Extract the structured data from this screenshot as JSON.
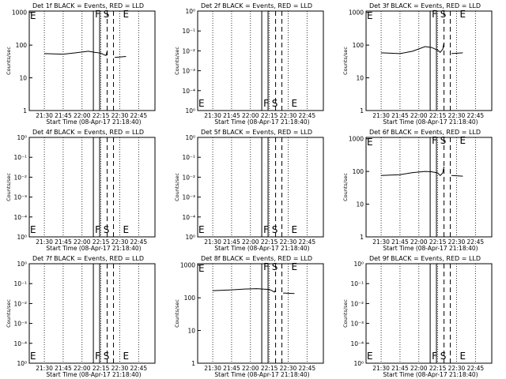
{
  "colors": {
    "events": "#000000",
    "lld": "#ff0000",
    "background": "#ffffff"
  },
  "chart_data": [
    {
      "type": "line",
      "title": "Det 1f BLACK = Events, RED = LLD",
      "xlabel": "Start Time (08-Apr-17 21:18:40)",
      "ylabel": "Counts/sec",
      "x_ticks": [
        "21:30",
        "21:45",
        "22:00",
        "22:15",
        "22:30",
        "22:45"
      ],
      "y_scale": "log",
      "y_ticks": [
        "1",
        "10",
        "100",
        "1000"
      ],
      "ylim": [
        1,
        1100
      ],
      "markers": [
        "F",
        "S",
        "E"
      ],
      "corner_label": "E",
      "series": [
        {
          "values": [
            [
              "21:30",
              55
            ],
            [
              "21:45",
              53
            ],
            [
              "21:55",
              58
            ],
            [
              "22:05",
              65
            ],
            [
              "22:10",
              60
            ],
            [
              "22:15",
              57
            ],
            [
              "22:17",
              52
            ],
            [
              "22:19",
              48
            ],
            [
              "22:20",
              65
            ],
            [
              "22:25",
              null
            ],
            [
              "22:26",
              42
            ],
            [
              "22:35",
              45
            ],
            [
              "22:36",
              null
            ]
          ]
        }
      ]
    },
    {
      "type": "line",
      "title": "Det 2f BLACK = Events, RED = LLD",
      "xlabel": "Start Time (08-Apr-17 21:18:40)",
      "ylabel": "Counts/sec",
      "x_ticks": [
        "21:30",
        "21:45",
        "22:00",
        "22:15",
        "22:30",
        "22:45"
      ],
      "y_scale": "log",
      "y_ticks": [
        "10⁰",
        "10⁻⁴",
        "10⁻³",
        "10⁻²",
        "10⁻¹",
        "10⁰"
      ],
      "y_tick_note": "tick labels as printed",
      "markers": [
        "F",
        "S",
        "E"
      ],
      "corner_label": "E",
      "series": []
    },
    {
      "type": "line",
      "title": "Det 3f BLACK = Events, RED = LLD",
      "xlabel": "Start Time (08-Apr-17 21:18:40)",
      "ylabel": "Counts/sec",
      "x_ticks": [
        "21:30",
        "21:45",
        "22:00",
        "22:15",
        "22:30",
        "22:45"
      ],
      "y_scale": "log",
      "y_ticks": [
        "1",
        "10",
        "100",
        "1000"
      ],
      "ylim": [
        1,
        1100
      ],
      "markers": [
        "F",
        "S",
        "E"
      ],
      "corner_label": "E",
      "series": [
        {
          "values": [
            [
              "21:30",
              58
            ],
            [
              "21:45",
              55
            ],
            [
              "21:55",
              65
            ],
            [
              "22:05",
              90
            ],
            [
              "22:10",
              85
            ],
            [
              "22:15",
              70
            ],
            [
              "22:17",
              60
            ],
            [
              "22:19",
              75
            ],
            [
              "22:20",
              120
            ],
            [
              "22:25",
              null
            ],
            [
              "22:26",
              55
            ],
            [
              "22:35",
              58
            ],
            [
              "22:36",
              null
            ]
          ]
        }
      ]
    },
    {
      "type": "line",
      "title": "Det 4f BLACK = Events, RED = LLD",
      "xlabel": "Start Time (08-Apr-17 21:18:40)",
      "ylabel": "Counts/sec",
      "x_ticks": [
        "21:30",
        "21:45",
        "22:00",
        "22:15",
        "22:30",
        "22:45"
      ],
      "y_scale": "log",
      "y_ticks": [
        "10⁰",
        "10⁻⁴",
        "10⁻³",
        "10⁻²",
        "10⁻¹",
        "10⁰"
      ],
      "markers": [
        "F",
        "S",
        "E"
      ],
      "corner_label": "E",
      "series": []
    },
    {
      "type": "line",
      "title": "Det 5f BLACK = Events, RED = LLD",
      "xlabel": "Start Time (08-Apr-17 21:18:40)",
      "ylabel": "Counts/sec",
      "x_ticks": [
        "21:30",
        "21:45",
        "22:00",
        "22:15",
        "22:30",
        "22:45"
      ],
      "y_scale": "log",
      "y_ticks": [
        "10⁰",
        "10⁻⁴",
        "10⁻³",
        "10⁻²",
        "10⁻¹",
        "10⁰"
      ],
      "markers": [
        "F",
        "S",
        "E"
      ],
      "corner_label": "E",
      "series": []
    },
    {
      "type": "line",
      "title": "Det 6f BLACK = Events, RED = LLD",
      "xlabel": "Start Time (08-Apr-17 21:18:40)",
      "ylabel": "Counts/sec",
      "x_ticks": [
        "21:30",
        "21:45",
        "22:00",
        "22:15",
        "22:30",
        "22:45"
      ],
      "y_scale": "log",
      "y_ticks": [
        "1",
        "10",
        "100",
        "1000"
      ],
      "ylim": [
        1,
        1100
      ],
      "markers": [
        "F",
        "S",
        "E"
      ],
      "corner_label": "E",
      "series": [
        {
          "values": [
            [
              "21:30",
              75
            ],
            [
              "21:45",
              80
            ],
            [
              "21:55",
              92
            ],
            [
              "22:05",
              100
            ],
            [
              "22:10",
              98
            ],
            [
              "22:15",
              90
            ],
            [
              "22:17",
              75
            ],
            [
              "22:19",
              90
            ],
            [
              "22:20",
              140
            ],
            [
              "22:25",
              null
            ],
            [
              "22:26",
              75
            ],
            [
              "22:35",
              72
            ],
            [
              "22:36",
              null
            ]
          ]
        }
      ]
    },
    {
      "type": "line",
      "title": "Det 7f BLACK = Events, RED = LLD",
      "xlabel": "Start Time (08-Apr-17 21:18:40)",
      "ylabel": "Counts/sec",
      "x_ticks": [
        "21:30",
        "21:45",
        "22:00",
        "22:15",
        "22:30",
        "22:45"
      ],
      "y_scale": "log",
      "y_ticks": [
        "10⁰",
        "10⁻⁴",
        "10⁻³",
        "10⁻²",
        "10⁻¹",
        "10⁰"
      ],
      "markers": [
        "F",
        "S",
        "E"
      ],
      "corner_label": "E",
      "series": []
    },
    {
      "type": "line",
      "title": "Det 8f BLACK = Events, RED = LLD",
      "xlabel": "Start Time (08-Apr-17 21:18:40)",
      "ylabel": "Counts/sec",
      "x_ticks": [
        "21:30",
        "21:45",
        "22:00",
        "22:15",
        "22:30",
        "22:45"
      ],
      "y_scale": "log",
      "y_ticks": [
        "1",
        "10",
        "100",
        "1000"
      ],
      "ylim": [
        1,
        1100
      ],
      "markers": [
        "F",
        "S",
        "E"
      ],
      "corner_label": "E",
      "series": [
        {
          "values": [
            [
              "21:30",
              165
            ],
            [
              "21:45",
              175
            ],
            [
              "21:55",
              185
            ],
            [
              "22:05",
              190
            ],
            [
              "22:10",
              185
            ],
            [
              "22:15",
              180
            ],
            [
              "22:17",
              165
            ],
            [
              "22:19",
              150
            ],
            [
              "22:20",
              170
            ],
            [
              "22:25",
              null
            ],
            [
              "22:26",
              140
            ],
            [
              "22:35",
              135
            ],
            [
              "22:36",
              null
            ]
          ]
        }
      ]
    },
    {
      "type": "line",
      "title": "Det 9f BLACK = Events, RED = LLD",
      "xlabel": "Start Time (08-Apr-17 21:18:40)",
      "ylabel": "Counts/sec",
      "x_ticks": [
        "21:30",
        "21:45",
        "22:00",
        "22:15",
        "22:30",
        "22:45"
      ],
      "y_scale": "log",
      "y_ticks": [
        "10⁰",
        "10⁻⁴",
        "10⁻³",
        "10⁻²",
        "10⁻¹",
        "10⁰"
      ],
      "markers": [
        "F",
        "S",
        "E"
      ],
      "corner_label": "E",
      "series": []
    }
  ]
}
